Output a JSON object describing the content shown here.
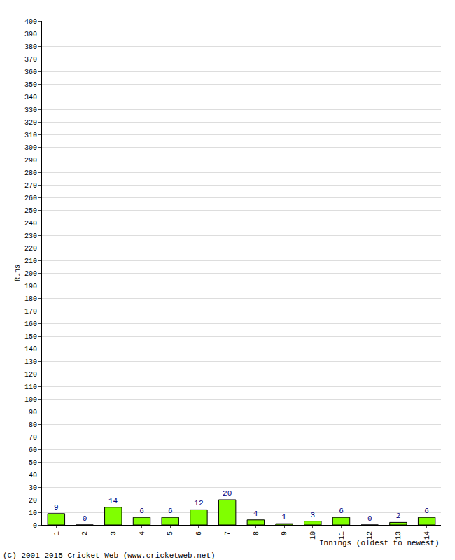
{
  "chart_data": {
    "type": "bar",
    "y_label": "Runs",
    "x_label": "Innings (oldest to newest)",
    "annotations": [
      "(C) 2001-2015 Cricket Web (www.cricketweb.net)"
    ],
    "categories": [
      "1",
      "2",
      "3",
      "4",
      "5",
      "6",
      "7",
      "8",
      "9",
      "10",
      "11",
      "12",
      "13",
      "14"
    ],
    "values": [
      9,
      0,
      14,
      6,
      6,
      12,
      20,
      4,
      1,
      3,
      6,
      0,
      2,
      6
    ],
    "color": "#80ff00",
    "ylim": [
      0,
      400
    ],
    "yticks": [
      0,
      10,
      20,
      30,
      40,
      50,
      60,
      70,
      80,
      90,
      100,
      110,
      120,
      130,
      140,
      150,
      160,
      170,
      180,
      190,
      200,
      210,
      220,
      230,
      240,
      250,
      260,
      270,
      280,
      290,
      300,
      310,
      320,
      330,
      340,
      350,
      360,
      370,
      380,
      390,
      400
    ],
    "grid": true,
    "data_labels": true
  }
}
